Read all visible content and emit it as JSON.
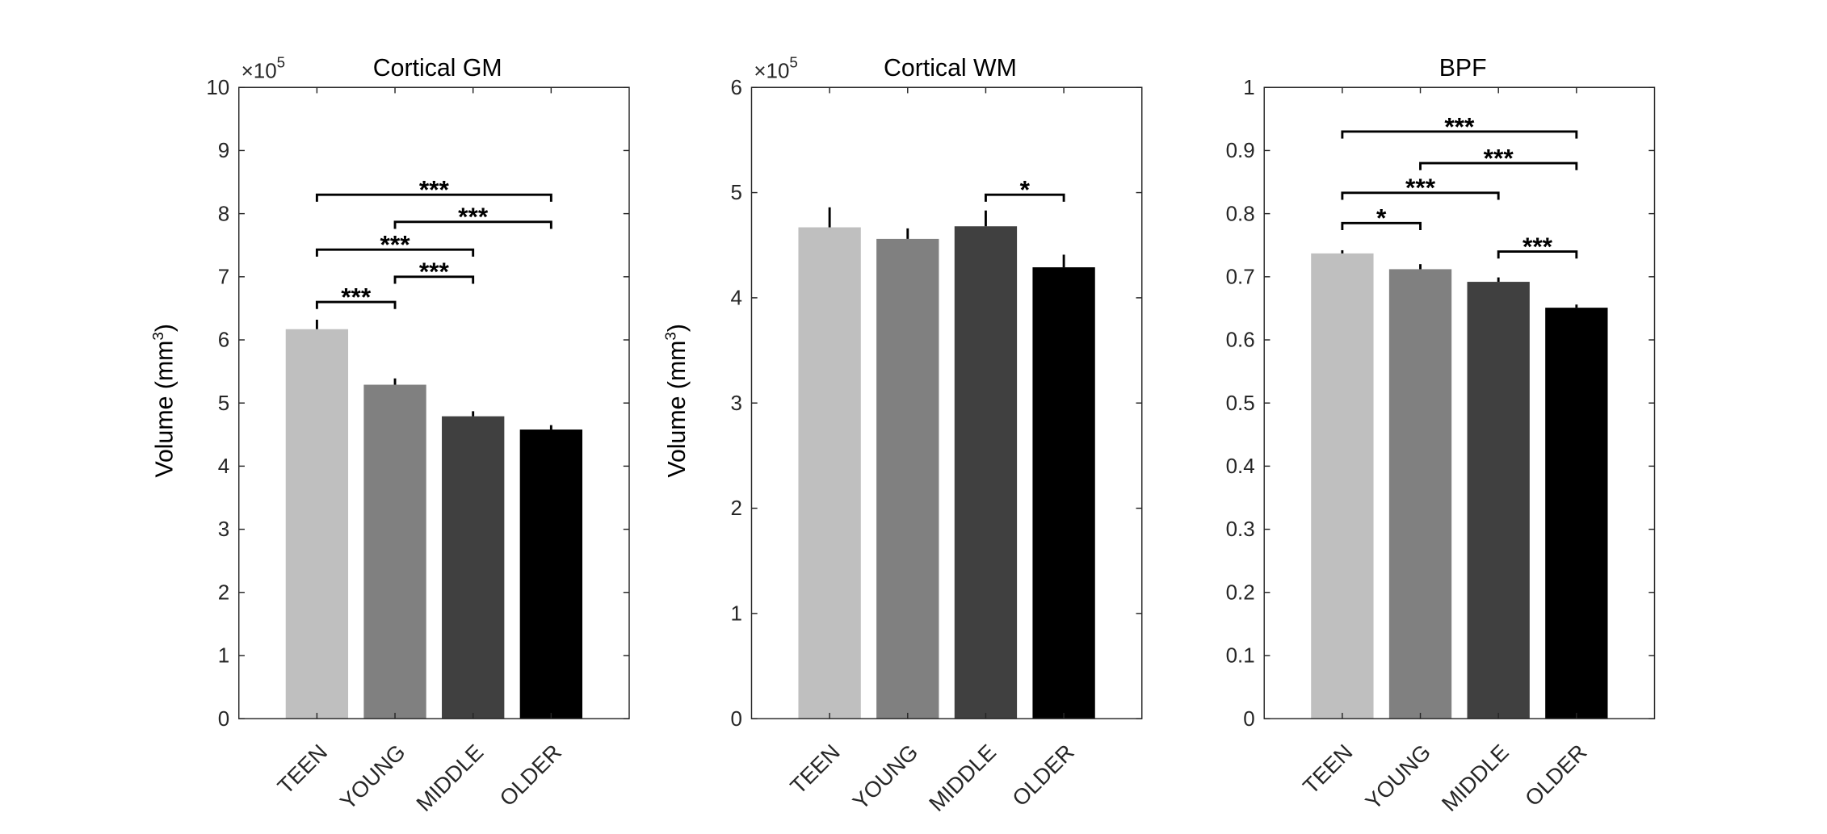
{
  "chart_data": [
    {
      "type": "bar",
      "title": "Cortical GM",
      "ylabel": "Volume (mm3)",
      "ylabel_text": "Volume (mm",
      "ylabel_sup": "3",
      "exponent_label": "×10",
      "exponent_sup": "5",
      "ylim": [
        0,
        10
      ],
      "yticks": [
        "0",
        "1",
        "2",
        "3",
        "4",
        "5",
        "6",
        "7",
        "8",
        "9",
        "10"
      ],
      "categories": [
        "TEEN",
        "YOUNG",
        "MIDDLE",
        "OLDER"
      ],
      "values": [
        6.17,
        5.29,
        4.79,
        4.58
      ],
      "errors": [
        0.15,
        0.1,
        0.08,
        0.07
      ],
      "significance": [
        {
          "from": 1,
          "to": 2,
          "level": 6.6,
          "label": "***"
        },
        {
          "from": 2,
          "to": 3,
          "level": 7.0,
          "label": "***"
        },
        {
          "from": 1,
          "to": 3,
          "level": 7.43,
          "label": "***"
        },
        {
          "from": 2,
          "to": 4,
          "level": 7.87,
          "label": "***"
        },
        {
          "from": 1,
          "to": 4,
          "level": 8.3,
          "label": "***"
        }
      ]
    },
    {
      "type": "bar",
      "title": "Cortical WM",
      "ylabel": "Volume (mm3)",
      "ylabel_text": "Volume (mm",
      "ylabel_sup": "3",
      "exponent_label": "×10",
      "exponent_sup": "5",
      "ylim": [
        0,
        6
      ],
      "yticks": [
        "0",
        "1",
        "2",
        "3",
        "4",
        "5",
        "6"
      ],
      "categories": [
        "TEEN",
        "YOUNG",
        "MIDDLE",
        "OLDER"
      ],
      "values": [
        4.67,
        4.56,
        4.68,
        4.29
      ],
      "errors": [
        0.19,
        0.1,
        0.15,
        0.12
      ],
      "significance": [
        {
          "from": 3,
          "to": 4,
          "level": 4.98,
          "label": "*"
        }
      ]
    },
    {
      "type": "bar",
      "title": "BPF",
      "ylabel": "",
      "ylim": [
        0,
        1
      ],
      "yticks": [
        "0",
        "0.1",
        "0.2",
        "0.3",
        "0.4",
        "0.5",
        "0.6",
        "0.7",
        "0.8",
        "0.9",
        "1"
      ],
      "categories": [
        "TEEN",
        "YOUNG",
        "MIDDLE",
        "OLDER"
      ],
      "values": [
        0.737,
        0.712,
        0.692,
        0.651
      ],
      "errors": [
        0.005,
        0.008,
        0.007,
        0.005
      ],
      "significance": [
        {
          "from": 1,
          "to": 2,
          "level": 0.785,
          "label": "*"
        },
        {
          "from": 3,
          "to": 4,
          "level": 0.74,
          "label": "***"
        },
        {
          "from": 1,
          "to": 3,
          "level": 0.833,
          "label": "***"
        },
        {
          "from": 2,
          "to": 4,
          "level": 0.88,
          "label": "***"
        },
        {
          "from": 1,
          "to": 4,
          "level": 0.93,
          "label": "***"
        }
      ]
    }
  ],
  "bar_colors": [
    "#bfbfbf",
    "#808080",
    "#404040",
    "#000000"
  ]
}
